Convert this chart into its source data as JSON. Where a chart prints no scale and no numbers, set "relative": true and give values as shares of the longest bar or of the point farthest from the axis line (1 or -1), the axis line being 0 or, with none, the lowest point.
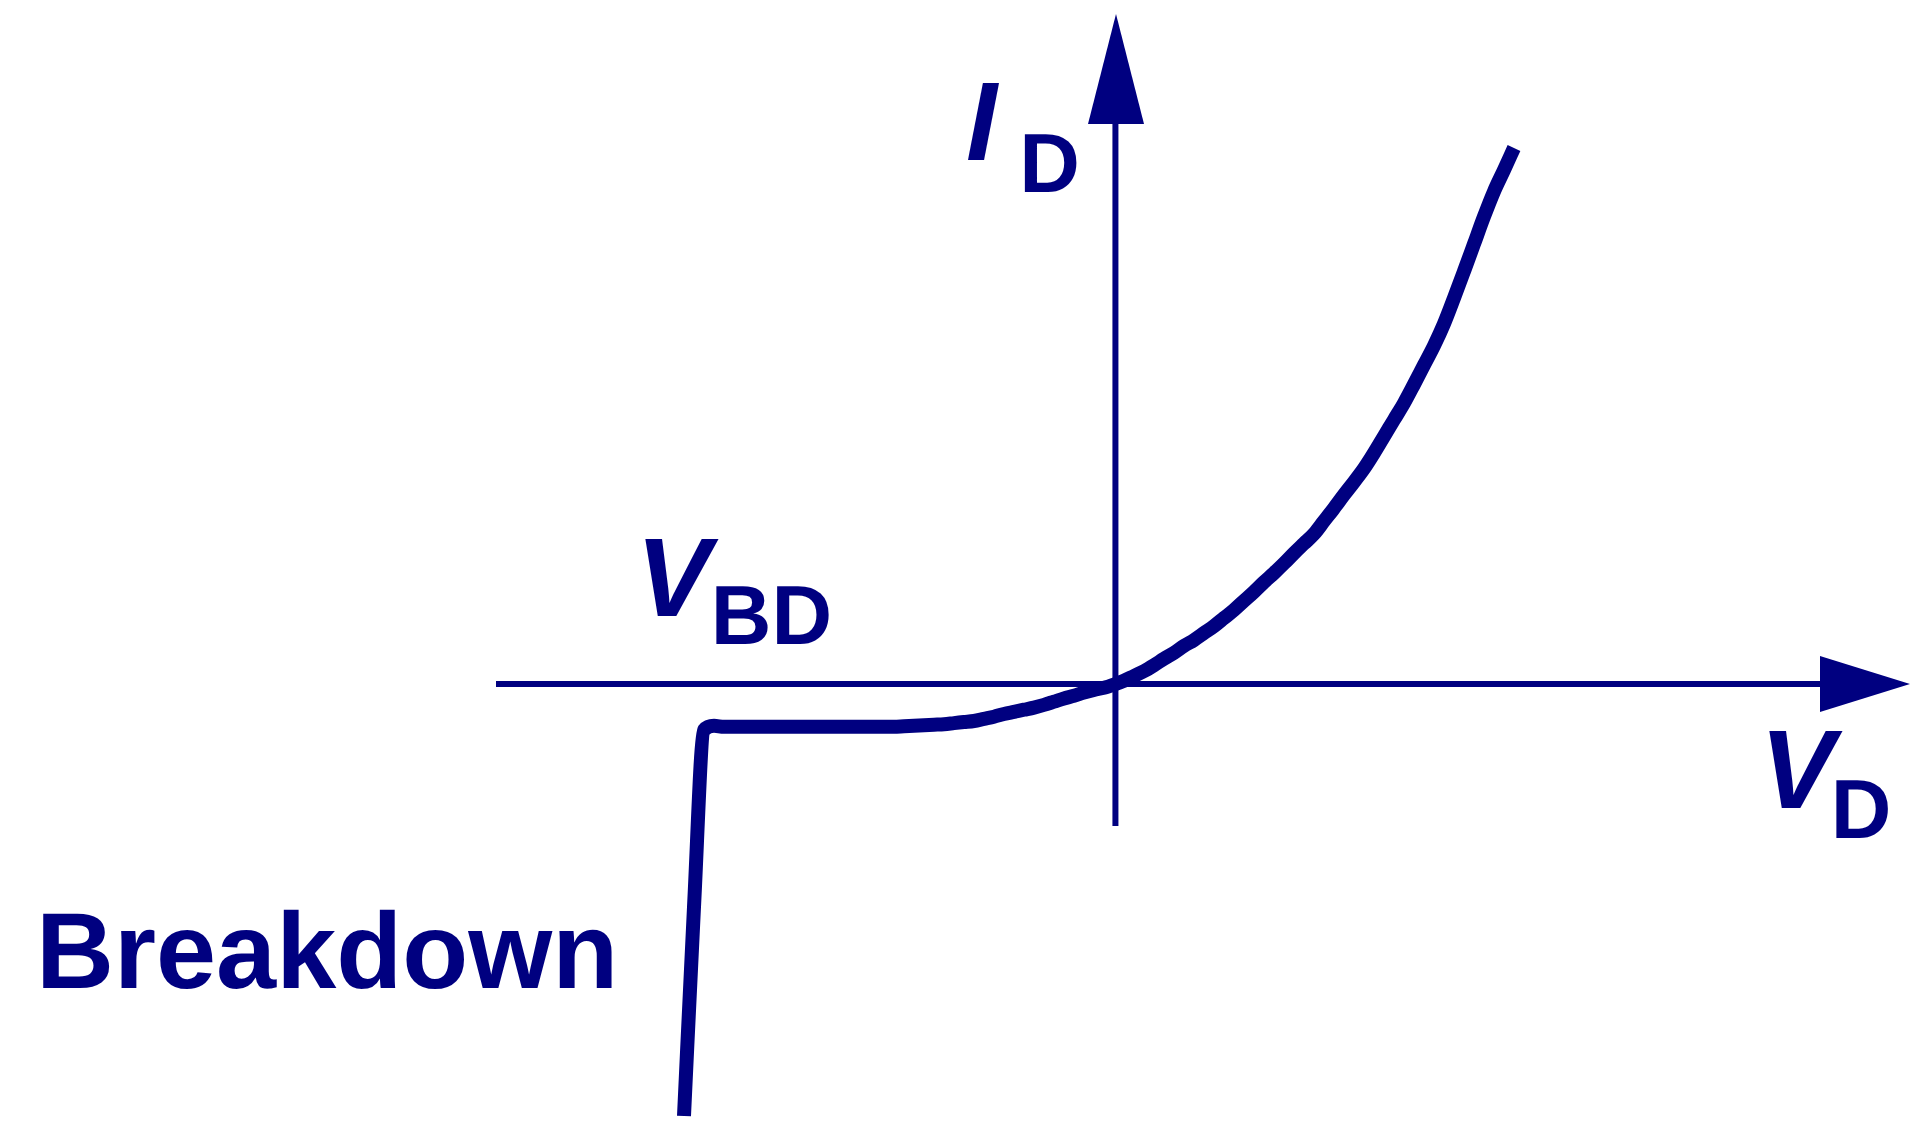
{
  "chart_data": {
    "type": "line",
    "xlabel": "V$_{D}$",
    "ylabel": "I$_{D}$",
    "annotations": [
      "V$_{BD}$",
      "Breakdown"
    ],
    "categories": [
      null,
      null,
      null,
      null,
      null,
      null,
      null,
      null,
      null,
      null,
      null,
      null,
      null,
      null,
      null,
      null,
      null,
      null,
      null,
      null,
      null,
      null,
      null,
      null,
      null,
      null,
      null,
      null,
      null,
      null,
      null,
      null,
      null,
      null,
      null,
      null,
      null,
      null,
      null,
      null,
      null,
      null,
      null,
      null,
      null,
      null,
      null,
      null,
      null,
      null,
      null,
      null,
      null,
      null,
      null,
      null,
      null,
      null,
      null,
      null,
      null,
      null,
      null,
      null,
      null,
      null,
      null,
      null,
      null,
      null,
      null,
      null,
      null,
      null,
      null,
      null,
      null,
      null,
      null,
      null,
      null,
      null,
      null,
      null
    ],
    "color": "#000080",
    "values": [
      -0.806,
      -0.416,
      -0.086,
      -0.078,
      -0.08,
      -0.08,
      -0.08,
      -0.08,
      -0.08,
      -0.08,
      -0.08,
      -0.08,
      -0.08,
      -0.08,
      -0.08,
      -0.08,
      -0.08,
      -0.08,
      -0.08,
      -0.08,
      -0.08,
      -0.08,
      -0.079,
      -0.078,
      -0.077,
      -0.076,
      -0.075,
      -0.073,
      -0.071,
      -0.069,
      -0.065,
      -0.061,
      -0.056,
      -0.052,
      -0.048,
      -0.044,
      -0.039,
      -0.033,
      -0.027,
      -0.022,
      -0.016,
      -0.011,
      -0.007,
      -0.001,
      0.006,
      0.015,
      0.024,
      0.035,
      0.047,
      0.058,
      0.071,
      0.082,
      0.095,
      0.108,
      0.123,
      0.138,
      0.155,
      0.172,
      0.19,
      0.207,
      0.225,
      0.244,
      0.262,
      0.28,
      0.304,
      0.328,
      0.353,
      0.377,
      0.402,
      0.431,
      0.462,
      0.493,
      0.524,
      0.559,
      0.595,
      0.631,
      0.672,
      0.72,
      0.77,
      0.821,
      0.872,
      0.919,
      0.959,
      1
    ],
    "ref_lines": [
      {
        "axis": "y",
        "value": 0,
        "color": "#000080"
      }
    ],
    "relative": true,
    "grid": false,
    "legend": false,
    "marker": "none",
    "line_style": "solid"
  }
}
